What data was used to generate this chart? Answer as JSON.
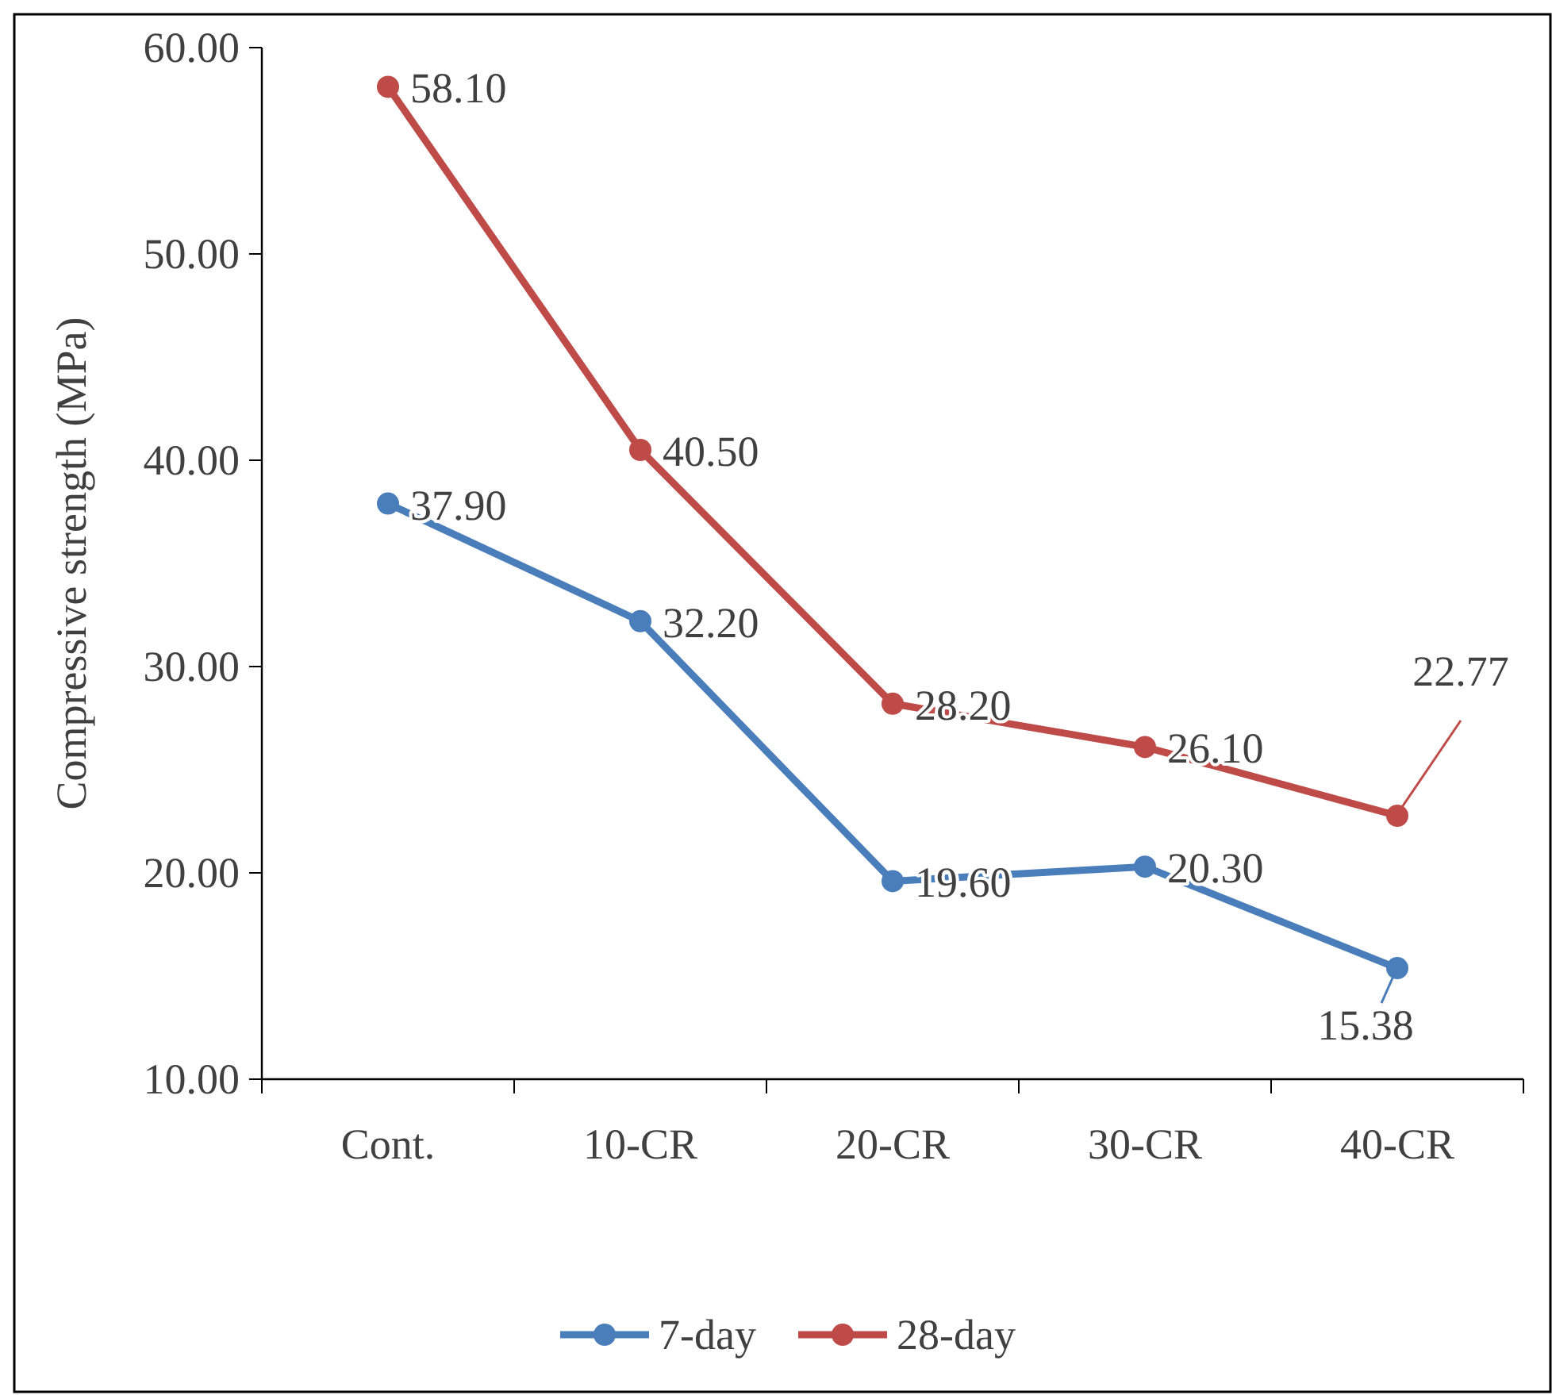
{
  "chart_data": {
    "type": "line",
    "ylabel": "Compressive strength (MPa)",
    "categories": [
      "Cont.",
      "10-CR",
      "20-CR",
      "30-CR",
      "40-CR"
    ],
    "ylim": [
      10,
      60
    ],
    "yticks": [
      {
        "value": 10,
        "label": "10.00"
      },
      {
        "value": 20,
        "label": "20.00"
      },
      {
        "value": 30,
        "label": "30.00"
      },
      {
        "value": 40,
        "label": "40.00"
      },
      {
        "value": 50,
        "label": "50.00"
      },
      {
        "value": 60,
        "label": "60.00"
      }
    ],
    "grid": false,
    "legend": "bottom",
    "marker": "circle",
    "line_style": "solid",
    "series": [
      {
        "name": "7-day",
        "color": "#4a7ebb",
        "values": [
          37.9,
          32.2,
          19.6,
          20.3,
          15.38
        ],
        "value_labels": [
          "37.90",
          "32.20",
          "19.60",
          "20.30",
          "15.38"
        ]
      },
      {
        "name": "28-day",
        "color": "#be4b48",
        "values": [
          58.1,
          40.5,
          28.2,
          26.1,
          22.77
        ],
        "value_labels": [
          "58.10",
          "40.50",
          "28.20",
          "26.10",
          "22.77"
        ]
      }
    ]
  }
}
